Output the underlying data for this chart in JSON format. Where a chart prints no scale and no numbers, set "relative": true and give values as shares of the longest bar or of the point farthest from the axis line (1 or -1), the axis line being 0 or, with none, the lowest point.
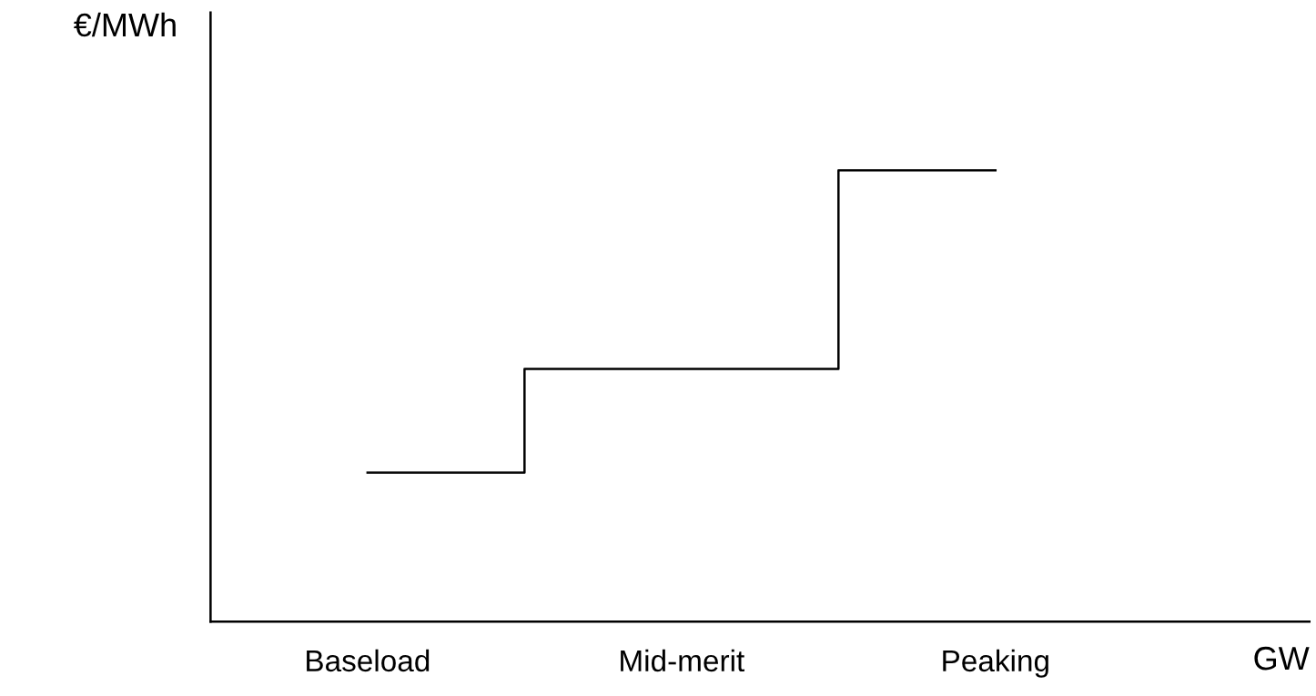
{
  "chart_data": {
    "type": "step",
    "relative": true,
    "xlabel": "GW",
    "ylabel": "€/MWh",
    "categories": [
      "Baseload",
      "Mid-merit",
      "Peaking"
    ],
    "values": [
      0.33,
      0.56,
      1
    ],
    "color": "#000000",
    "grid": false,
    "legend": false
  }
}
